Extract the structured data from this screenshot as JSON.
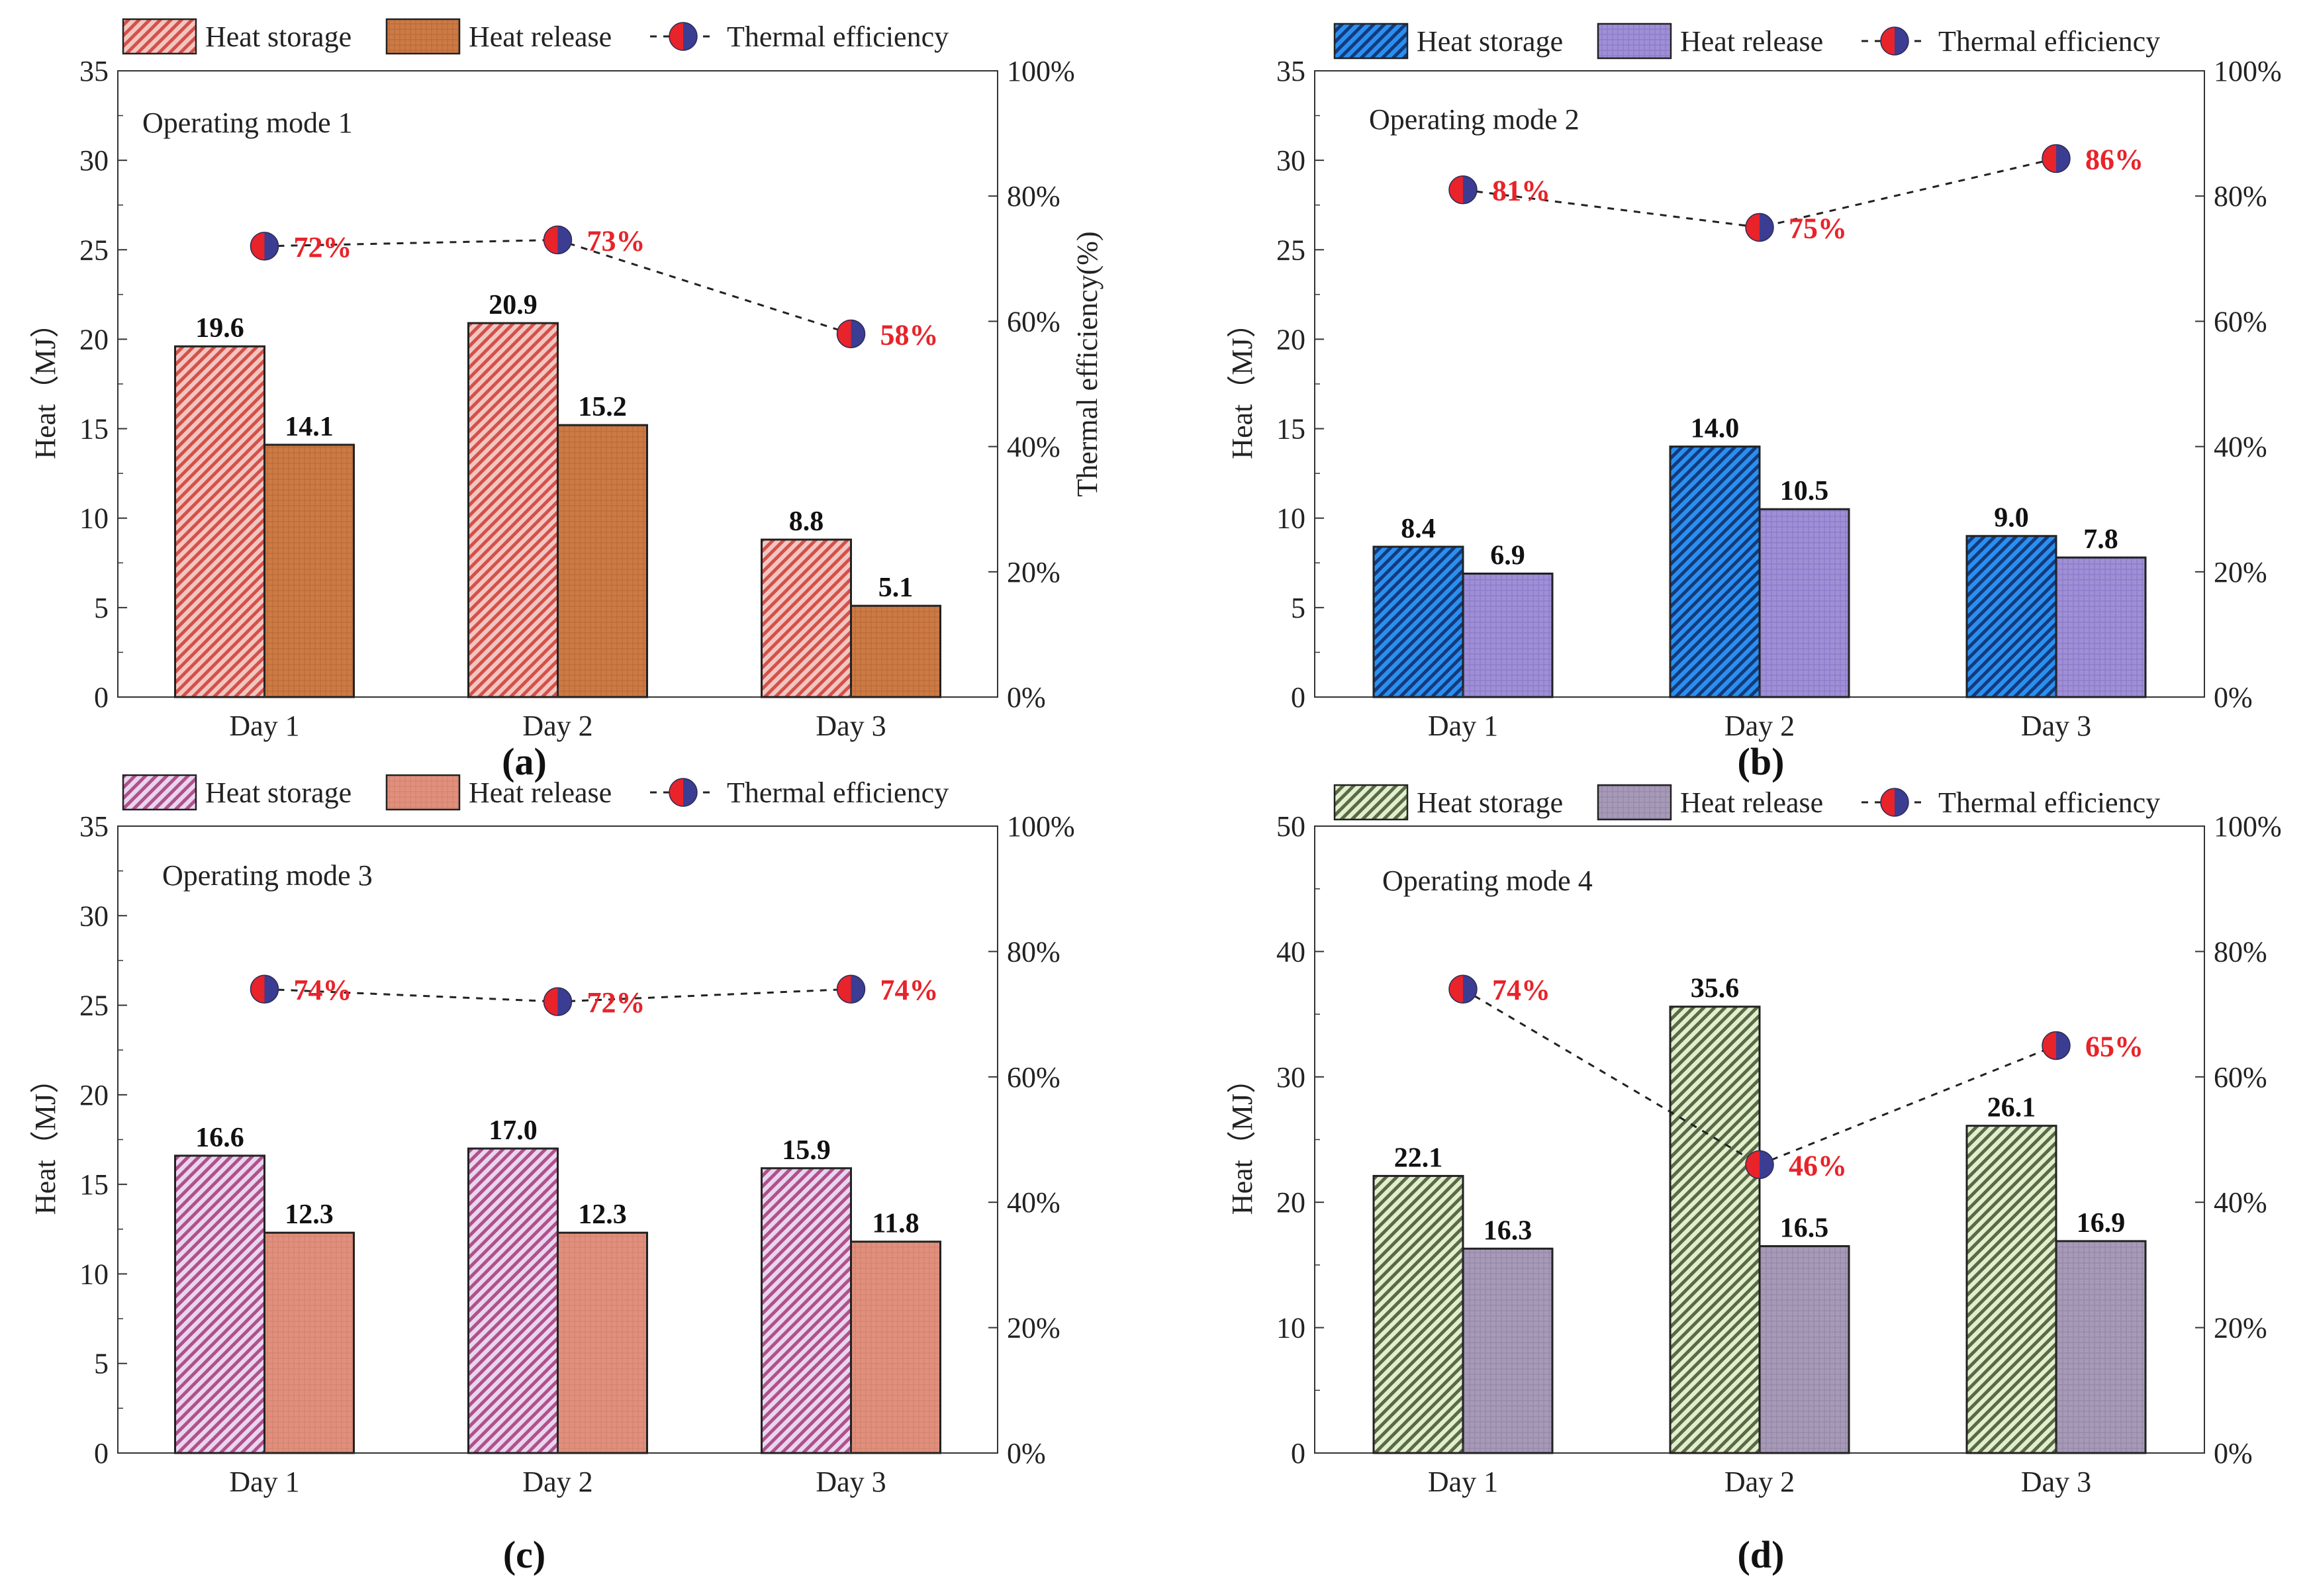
{
  "figure": {
    "y_label_left": "Heat（MJ）",
    "y_label_right_a": "Thermal efficiency(%)",
    "legend_labels": [
      "Heat storage",
      "Heat release",
      "Thermal efficiency"
    ]
  },
  "chart_data": [
    {
      "type": "bar",
      "panel_label": "(a)",
      "title": "Operating mode 1",
      "categories": [
        "Day 1",
        "Day 2",
        "Day 3"
      ],
      "series": [
        {
          "name": "Heat storage",
          "values": [
            19.6,
            20.9,
            8.8
          ],
          "value_labels": [
            "19.6",
            "20.9",
            "8.8"
          ],
          "color": "#f2c6c0",
          "hatch_color": "#d4504a"
        },
        {
          "name": "Heat release",
          "values": [
            14.1,
            15.2,
            5.1
          ],
          "value_labels": [
            "14.1",
            "15.2",
            "5.1"
          ],
          "color": "#cd7a45",
          "hatch_color": "#a95e2e"
        }
      ],
      "efficiency": {
        "name": "Thermal efficiency",
        "values": [
          72,
          73,
          58
        ],
        "labels": [
          "72%",
          "73%",
          "58%"
        ]
      },
      "ylim": [
        0,
        35
      ],
      "yticks": [
        "0",
        "5",
        "10",
        "15",
        "20",
        "25",
        "30",
        "35"
      ],
      "y2lim": [
        0,
        100
      ],
      "y2ticks": [
        "0%",
        "20%",
        "40%",
        "60%",
        "80%",
        "100%"
      ],
      "ylabel": "Heat（MJ）",
      "y2label": "Thermal efficiency(%)",
      "legend": "top"
    },
    {
      "type": "bar",
      "panel_label": "(b)",
      "title": "Operating mode 2",
      "categories": [
        "Day 1",
        "Day 2",
        "Day 3"
      ],
      "series": [
        {
          "name": "Heat storage",
          "values": [
            8.4,
            14.0,
            9.0
          ],
          "value_labels": [
            "8.4",
            "14.0",
            "9.0"
          ],
          "color": "#2a8ff0",
          "hatch_color": "#143a7a"
        },
        {
          "name": "Heat release",
          "values": [
            6.9,
            10.5,
            7.8
          ],
          "value_labels": [
            "6.9",
            "10.5",
            "7.8"
          ],
          "color": "#9f8fd6",
          "hatch_color": "#7a68bb"
        }
      ],
      "efficiency": {
        "name": "Thermal efficiency",
        "values": [
          81,
          75,
          86
        ],
        "labels": [
          "81%",
          "75%",
          "86%"
        ]
      },
      "ylim": [
        0,
        35
      ],
      "yticks": [
        "0",
        "5",
        "10",
        "15",
        "20",
        "25",
        "30",
        "35"
      ],
      "y2lim": [
        0,
        100
      ],
      "y2ticks": [
        "0%",
        "20%",
        "40%",
        "60%",
        "80%",
        "100%"
      ],
      "ylabel": "Heat（MJ）",
      "y2label": "",
      "legend": "top"
    },
    {
      "type": "bar",
      "panel_label": "(c)",
      "title": "Operating mode 3",
      "categories": [
        "Day 1",
        "Day 2",
        "Day 3"
      ],
      "series": [
        {
          "name": "Heat storage",
          "values": [
            16.6,
            17.0,
            15.9
          ],
          "value_labels": [
            "16.6",
            "17.0",
            "15.9"
          ],
          "color": "#e8d6ee",
          "hatch_color": "#b0508c"
        },
        {
          "name": "Heat release",
          "values": [
            12.3,
            12.3,
            11.8
          ],
          "value_labels": [
            "12.3",
            "12.3",
            "11.8"
          ],
          "color": "#e0907c",
          "hatch_color": "#c97a66"
        }
      ],
      "efficiency": {
        "name": "Thermal efficiency",
        "values": [
          74,
          72,
          74
        ],
        "labels": [
          "74%",
          "72%",
          "74%"
        ]
      },
      "ylim": [
        0,
        35
      ],
      "yticks": [
        "0",
        "5",
        "10",
        "15",
        "20",
        "25",
        "30",
        "35"
      ],
      "y2lim": [
        0,
        100
      ],
      "y2ticks": [
        "0%",
        "20%",
        "40%",
        "60%",
        "80%",
        "100%"
      ],
      "ylabel": "Heat（MJ）",
      "y2label": "",
      "legend": "top"
    },
    {
      "type": "bar",
      "panel_label": "(d)",
      "title": "Operating mode 4",
      "categories": [
        "Day 1",
        "Day 2",
        "Day 3"
      ],
      "series": [
        {
          "name": "Heat storage",
          "values": [
            22.1,
            35.6,
            26.1
          ],
          "value_labels": [
            "22.1",
            "35.6",
            "26.1"
          ],
          "color": "#e2efcf",
          "hatch_color": "#5a6a45"
        },
        {
          "name": "Heat release",
          "values": [
            16.3,
            16.5,
            16.9
          ],
          "value_labels": [
            "16.3",
            "16.5",
            "16.9"
          ],
          "color": "#a79ab8",
          "hatch_color": "#857896"
        }
      ],
      "efficiency": {
        "name": "Thermal efficiency",
        "values": [
          74,
          46,
          65
        ],
        "labels": [
          "74%",
          "46%",
          "65%"
        ]
      },
      "ylim": [
        0,
        50
      ],
      "yticks": [
        "0",
        "10",
        "20",
        "30",
        "40",
        "50"
      ],
      "y2lim": [
        0,
        100
      ],
      "y2ticks": [
        "0%",
        "20%",
        "40%",
        "60%",
        "80%",
        "100%"
      ],
      "ylabel": "Heat（MJ）",
      "y2label": "",
      "legend": "top"
    }
  ]
}
